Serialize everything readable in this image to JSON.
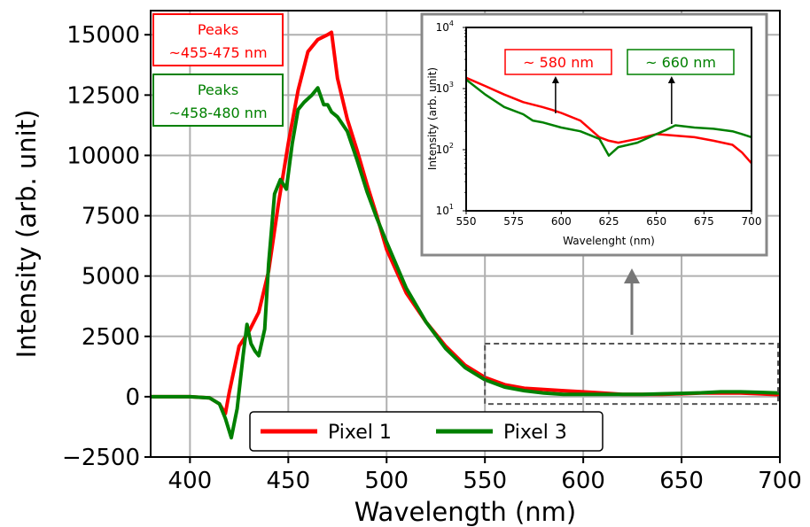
{
  "chart_data": [
    {
      "type": "line",
      "xlabel": "Wavelength (nm)",
      "ylabel": "Intensity (arb. unit)",
      "xlim": [
        380,
        700
      ],
      "ylim": [
        -2500,
        16000
      ],
      "xticks": [
        "400",
        "450",
        "500",
        "550",
        "600",
        "650",
        "700"
      ],
      "yticks": [
        "−2500",
        "0",
        "2500",
        "5000",
        "7500",
        "10000",
        "12500",
        "15000"
      ],
      "grid": true,
      "legend_position": "bottom-center",
      "colors": {
        "pixel1": "#ff0000",
        "pixel3": "#008000"
      },
      "series": [
        {
          "name": "Pixel 1",
          "color": "#ff0000",
          "x": [
            380,
            400,
            410,
            415,
            418,
            420,
            425,
            430,
            435,
            440,
            445,
            450,
            455,
            460,
            465,
            470,
            472,
            475,
            480,
            485,
            490,
            495,
            500,
            510,
            520,
            530,
            540,
            550,
            560,
            570,
            580,
            590,
            600,
            610,
            620,
            630,
            640,
            650,
            660,
            670,
            680,
            690,
            700
          ],
          "y": [
            0,
            0,
            -50,
            -300,
            -700,
            200,
            2100,
            2700,
            3500,
            5200,
            8000,
            10500,
            12700,
            14300,
            14800,
            15000,
            15100,
            13200,
            11500,
            10200,
            8800,
            7500,
            6100,
            4300,
            3100,
            2100,
            1300,
            800,
            500,
            350,
            300,
            250,
            200,
            150,
            100,
            100,
            100,
            120,
            150,
            150,
            150,
            120,
            80
          ]
        },
        {
          "name": "Pixel 3",
          "color": "#008000",
          "x": [
            380,
            400,
            410,
            415,
            418,
            421,
            424,
            427,
            429,
            431,
            433,
            435,
            438,
            440,
            443,
            446,
            449,
            452,
            455,
            458,
            462,
            465,
            468,
            470,
            472,
            475,
            480,
            485,
            490,
            495,
            500,
            510,
            520,
            530,
            540,
            550,
            560,
            570,
            580,
            590,
            600,
            610,
            620,
            630,
            640,
            650,
            660,
            670,
            680,
            690,
            700
          ],
          "y": [
            0,
            0,
            -50,
            -300,
            -900,
            -1700,
            -500,
            1700,
            3000,
            2200,
            1900,
            1700,
            2800,
            5500,
            8400,
            9000,
            8600,
            10500,
            11900,
            12200,
            12500,
            12800,
            12100,
            12100,
            11800,
            11600,
            11000,
            9800,
            8500,
            7400,
            6400,
            4500,
            3100,
            2000,
            1200,
            700,
            400,
            250,
            150,
            100,
            100,
            100,
            100,
            100,
            120,
            140,
            160,
            200,
            200,
            180,
            150
          ]
        }
      ],
      "annotations": [
        {
          "lines": [
            "Peaks",
            "~455-475 nm"
          ],
          "color": "#ff0000"
        },
        {
          "lines": [
            "Peaks",
            "~458-480 nm"
          ],
          "color": "#008000"
        }
      ],
      "highlight_region": {
        "x": [
          550,
          700
        ],
        "y": [
          -300,
          2200
        ]
      }
    },
    {
      "type": "line",
      "xlabel": "Wavelenght (nm)",
      "ylabel": "Intensity (arb. unit)",
      "xlim": [
        550,
        700
      ],
      "ylim": [
        10,
        10000
      ],
      "yscale": "log",
      "xticks": [
        "550",
        "575",
        "600",
        "625",
        "650",
        "675",
        "700"
      ],
      "yticks": [
        {
          "base": "10",
          "exp": "1"
        },
        {
          "base": "10",
          "exp": "2"
        },
        {
          "base": "10",
          "exp": "3"
        },
        {
          "base": "10",
          "exp": "4"
        }
      ],
      "grid": false,
      "series": [
        {
          "name": "Pixel 1",
          "color": "#ff0000",
          "x": [
            550,
            560,
            570,
            580,
            590,
            595,
            600,
            610,
            615,
            620,
            625,
            630,
            640,
            650,
            660,
            670,
            680,
            690,
            695,
            700
          ],
          "y": [
            1500,
            1100,
            800,
            600,
            500,
            450,
            400,
            300,
            220,
            160,
            140,
            130,
            150,
            180,
            170,
            160,
            140,
            120,
            90,
            60
          ]
        },
        {
          "name": "Pixel 3",
          "color": "#008000",
          "x": [
            550,
            560,
            570,
            580,
            585,
            590,
            600,
            610,
            620,
            625,
            630,
            640,
            650,
            655,
            660,
            670,
            680,
            690,
            695,
            700
          ],
          "y": [
            1400,
            800,
            500,
            380,
            300,
            280,
            230,
            200,
            150,
            80,
            110,
            130,
            180,
            210,
            250,
            230,
            220,
            200,
            180,
            160
          ]
        }
      ],
      "annotations": [
        {
          "text": "~ 580 nm",
          "color": "#ff0000",
          "arrow_x": 597
        },
        {
          "text": "~ 660 nm",
          "color": "#008000",
          "arrow_x": 658
        }
      ]
    }
  ]
}
